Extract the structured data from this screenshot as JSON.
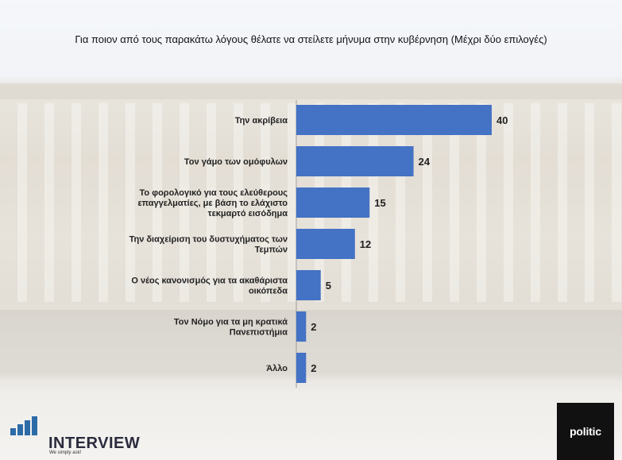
{
  "title": "Για ποιον από τους παρακάτω λόγους θέλατε να στείλετε μήνυμα στην κυβέρνηση (Μέχρι δύο επιλογές)",
  "chart_data": {
    "type": "bar",
    "orientation": "horizontal",
    "title": "Για ποιον από τους παρακάτω λόγους θέλατε να στείλετε μήνυμα στην κυβέρνηση (Μέχρι δύο επιλογές)",
    "categories": [
      "Την ακρίβεια",
      "Τον γάμο των ομόφυλων",
      "Το φορολογικό για τους ελεύθερους επαγγελματίες, με βάση το ελάχιστο τεκμαρτό εισόδημα",
      "Την διαχείριση του δυστυχήματος των Τεμπών",
      "Ο νέος κανονισμός για τα ακαθάριστα οικόπεδα",
      "Τον Νόμο για τα μη κρατικά Πανεπιστήμια",
      "Άλλο"
    ],
    "category_lines": [
      [
        "Την ακρίβεια"
      ],
      [
        "Τον γάμο των ομόφυλων"
      ],
      [
        "Το φορολογικό για τους ελεύθερους",
        "επαγγελματίες, με βάση το ελάχιστο",
        "τεκμαρτό εισόδημα"
      ],
      [
        "Την διαχείριση του δυστυχήματος των",
        "Τεμπών"
      ],
      [
        "Ο νέος κανονισμός για τα ακαθάριστα",
        "οικόπεδα"
      ],
      [
        "Τον Νόμο για τα μη κρατικά",
        "Πανεπιστήμια"
      ],
      [
        "Άλλο"
      ]
    ],
    "values": [
      40,
      24,
      15,
      12,
      5,
      2,
      2
    ],
    "xlim": [
      0,
      40
    ],
    "bar_color": "#4472c4",
    "grid": false,
    "legend": "none"
  },
  "logos": {
    "interview": {
      "name": "INTERVIEW",
      "tagline": "We simply ask!",
      "color": "#2d6ba8"
    },
    "politic": {
      "name": "politic"
    }
  }
}
